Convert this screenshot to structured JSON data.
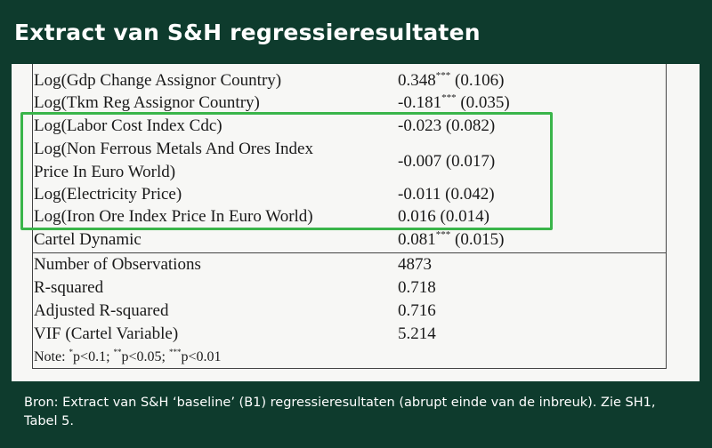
{
  "title": "Extract van S&H regressieresultaten",
  "table": {
    "rows": [
      {
        "label": "Log(Gdp Change Assignor Country)",
        "coef": "0.348",
        "stars": "***",
        "se": "(0.106)"
      },
      {
        "label": "Log(Tkm Reg Assignor Country)",
        "coef": "-0.181",
        "stars": "***",
        "se": "(0.035)"
      },
      {
        "label": "Log(Labor Cost Index Cdc)",
        "coef": "-0.023",
        "stars": "",
        "se": "(0.082)"
      },
      {
        "label_line1": "Log(Non Ferrous Metals And Ores Index",
        "label_line2": "Price In Euro World)",
        "coef": "-0.007",
        "stars": "",
        "se": "(0.017)"
      },
      {
        "label": "Log(Electricity Price)",
        "coef": "-0.011",
        "stars": "",
        "se": "(0.042)"
      },
      {
        "label": "Log(Iron Ore Index Price In Euro World)",
        "coef": "0.016",
        "stars": "",
        "se": "(0.014)"
      },
      {
        "label": "Cartel Dynamic",
        "coef": "0.081",
        "stars": "***",
        "se": "(0.015)"
      }
    ],
    "stats": [
      {
        "label": "Number of Observations",
        "value": "4873"
      },
      {
        "label": "R-squared",
        "value": "0.718"
      },
      {
        "label": "Adjusted R-squared",
        "value": "0.716"
      },
      {
        "label": "VIF (Cartel Variable)",
        "value": "5.214"
      }
    ],
    "note": {
      "prefix": "Note: ",
      "s1": "*",
      "t1": "p<0.1; ",
      "s2": "**",
      "t2": "p<0.05; ",
      "s3": "***",
      "t3": "p<0.01"
    }
  },
  "source": "Bron: Extract van S&H ‘baseline’ (B1) regressieresultaten (abrupt einde van de inbreuk). Zie SH1, Tabel 5.",
  "colors": {
    "background": "#0e3b2d",
    "highlight_border": "#3ab54a",
    "panel": "#f7f7f5"
  }
}
